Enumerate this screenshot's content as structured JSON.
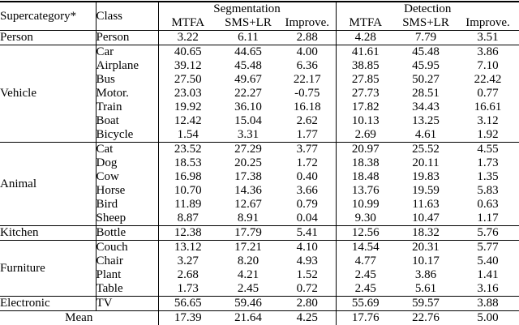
{
  "colors": {
    "text": "#000000",
    "background": "#ffffff",
    "border": "#000000"
  },
  "table": {
    "header": {
      "supercategory": "Supercategory*",
      "class": "Class",
      "group_headers": [
        "Segmentation",
        "Detection"
      ],
      "sub_headers": [
        "MTFA",
        "SMS+LR",
        "Improve."
      ]
    },
    "groups": [
      {
        "supercategory": "Person",
        "rows": [
          {
            "class": "Person",
            "segmentation": [
              "3.22",
              "6.11",
              "2.88"
            ],
            "detection": [
              "4.28",
              "7.79",
              "3.51"
            ]
          }
        ]
      },
      {
        "supercategory": "Vehicle",
        "rows": [
          {
            "class": "Car",
            "segmentation": [
              "40.65",
              "44.65",
              "4.00"
            ],
            "detection": [
              "41.61",
              "45.48",
              "3.86"
            ]
          },
          {
            "class": "Airplane",
            "segmentation": [
              "39.12",
              "45.48",
              "6.36"
            ],
            "detection": [
              "38.85",
              "45.95",
              "7.10"
            ]
          },
          {
            "class": "Bus",
            "segmentation": [
              "27.50",
              "49.67",
              "22.17"
            ],
            "detection": [
              "27.85",
              "50.27",
              "22.42"
            ]
          },
          {
            "class": "Motor.",
            "segmentation": [
              "23.03",
              "22.27",
              "-0.75"
            ],
            "detection": [
              "27.73",
              "28.51",
              "0.77"
            ]
          },
          {
            "class": "Train",
            "segmentation": [
              "19.92",
              "36.10",
              "16.18"
            ],
            "detection": [
              "17.82",
              "34.43",
              "16.61"
            ]
          },
          {
            "class": "Boat",
            "segmentation": [
              "12.42",
              "15.04",
              "2.62"
            ],
            "detection": [
              "10.13",
              "13.25",
              "3.12"
            ]
          },
          {
            "class": "Bicycle",
            "segmentation": [
              "1.54",
              "3.31",
              "1.77"
            ],
            "detection": [
              "2.69",
              "4.61",
              "1.92"
            ]
          }
        ]
      },
      {
        "supercategory": "Animal",
        "rows": [
          {
            "class": "Cat",
            "segmentation": [
              "23.52",
              "27.29",
              "3.77"
            ],
            "detection": [
              "20.97",
              "25.52",
              "4.55"
            ]
          },
          {
            "class": "Dog",
            "segmentation": [
              "18.53",
              "20.25",
              "1.72"
            ],
            "detection": [
              "18.38",
              "20.11",
              "1.73"
            ]
          },
          {
            "class": "Cow",
            "segmentation": [
              "16.98",
              "17.38",
              "0.40"
            ],
            "detection": [
              "18.48",
              "19.83",
              "1.35"
            ]
          },
          {
            "class": "Horse",
            "segmentation": [
              "10.70",
              "14.36",
              "3.66"
            ],
            "detection": [
              "13.76",
              "19.59",
              "5.83"
            ]
          },
          {
            "class": "Bird",
            "segmentation": [
              "11.89",
              "12.67",
              "0.79"
            ],
            "detection": [
              "10.99",
              "11.63",
              "0.63"
            ]
          },
          {
            "class": "Sheep",
            "segmentation": [
              "8.87",
              "8.91",
              "0.04"
            ],
            "detection": [
              "9.30",
              "10.47",
              "1.17"
            ]
          }
        ]
      },
      {
        "supercategory": "Kitchen",
        "rows": [
          {
            "class": "Bottle",
            "segmentation": [
              "12.38",
              "17.79",
              "5.41"
            ],
            "detection": [
              "12.56",
              "18.32",
              "5.76"
            ]
          }
        ]
      },
      {
        "supercategory": "Furniture",
        "rows": [
          {
            "class": "Couch",
            "segmentation": [
              "13.12",
              "17.21",
              "4.10"
            ],
            "detection": [
              "14.54",
              "20.31",
              "5.77"
            ]
          },
          {
            "class": "Chair",
            "segmentation": [
              "3.27",
              "8.20",
              "4.93"
            ],
            "detection": [
              "4.77",
              "10.17",
              "5.40"
            ]
          },
          {
            "class": "Plant",
            "segmentation": [
              "2.68",
              "4.21",
              "1.52"
            ],
            "detection": [
              "2.45",
              "3.86",
              "1.41"
            ]
          },
          {
            "class": "Table",
            "segmentation": [
              "1.73",
              "2.45",
              "0.72"
            ],
            "detection": [
              "2.45",
              "5.61",
              "3.16"
            ]
          }
        ]
      },
      {
        "supercategory": "Electronic",
        "rows": [
          {
            "class": "TV",
            "segmentation": [
              "56.65",
              "59.46",
              "2.80"
            ],
            "detection": [
              "55.69",
              "59.57",
              "3.88"
            ]
          }
        ]
      }
    ],
    "mean": {
      "label": "Mean",
      "segmentation": [
        "17.39",
        "21.64",
        "4.25"
      ],
      "detection": [
        "17.76",
        "22.76",
        "5.00"
      ]
    }
  }
}
